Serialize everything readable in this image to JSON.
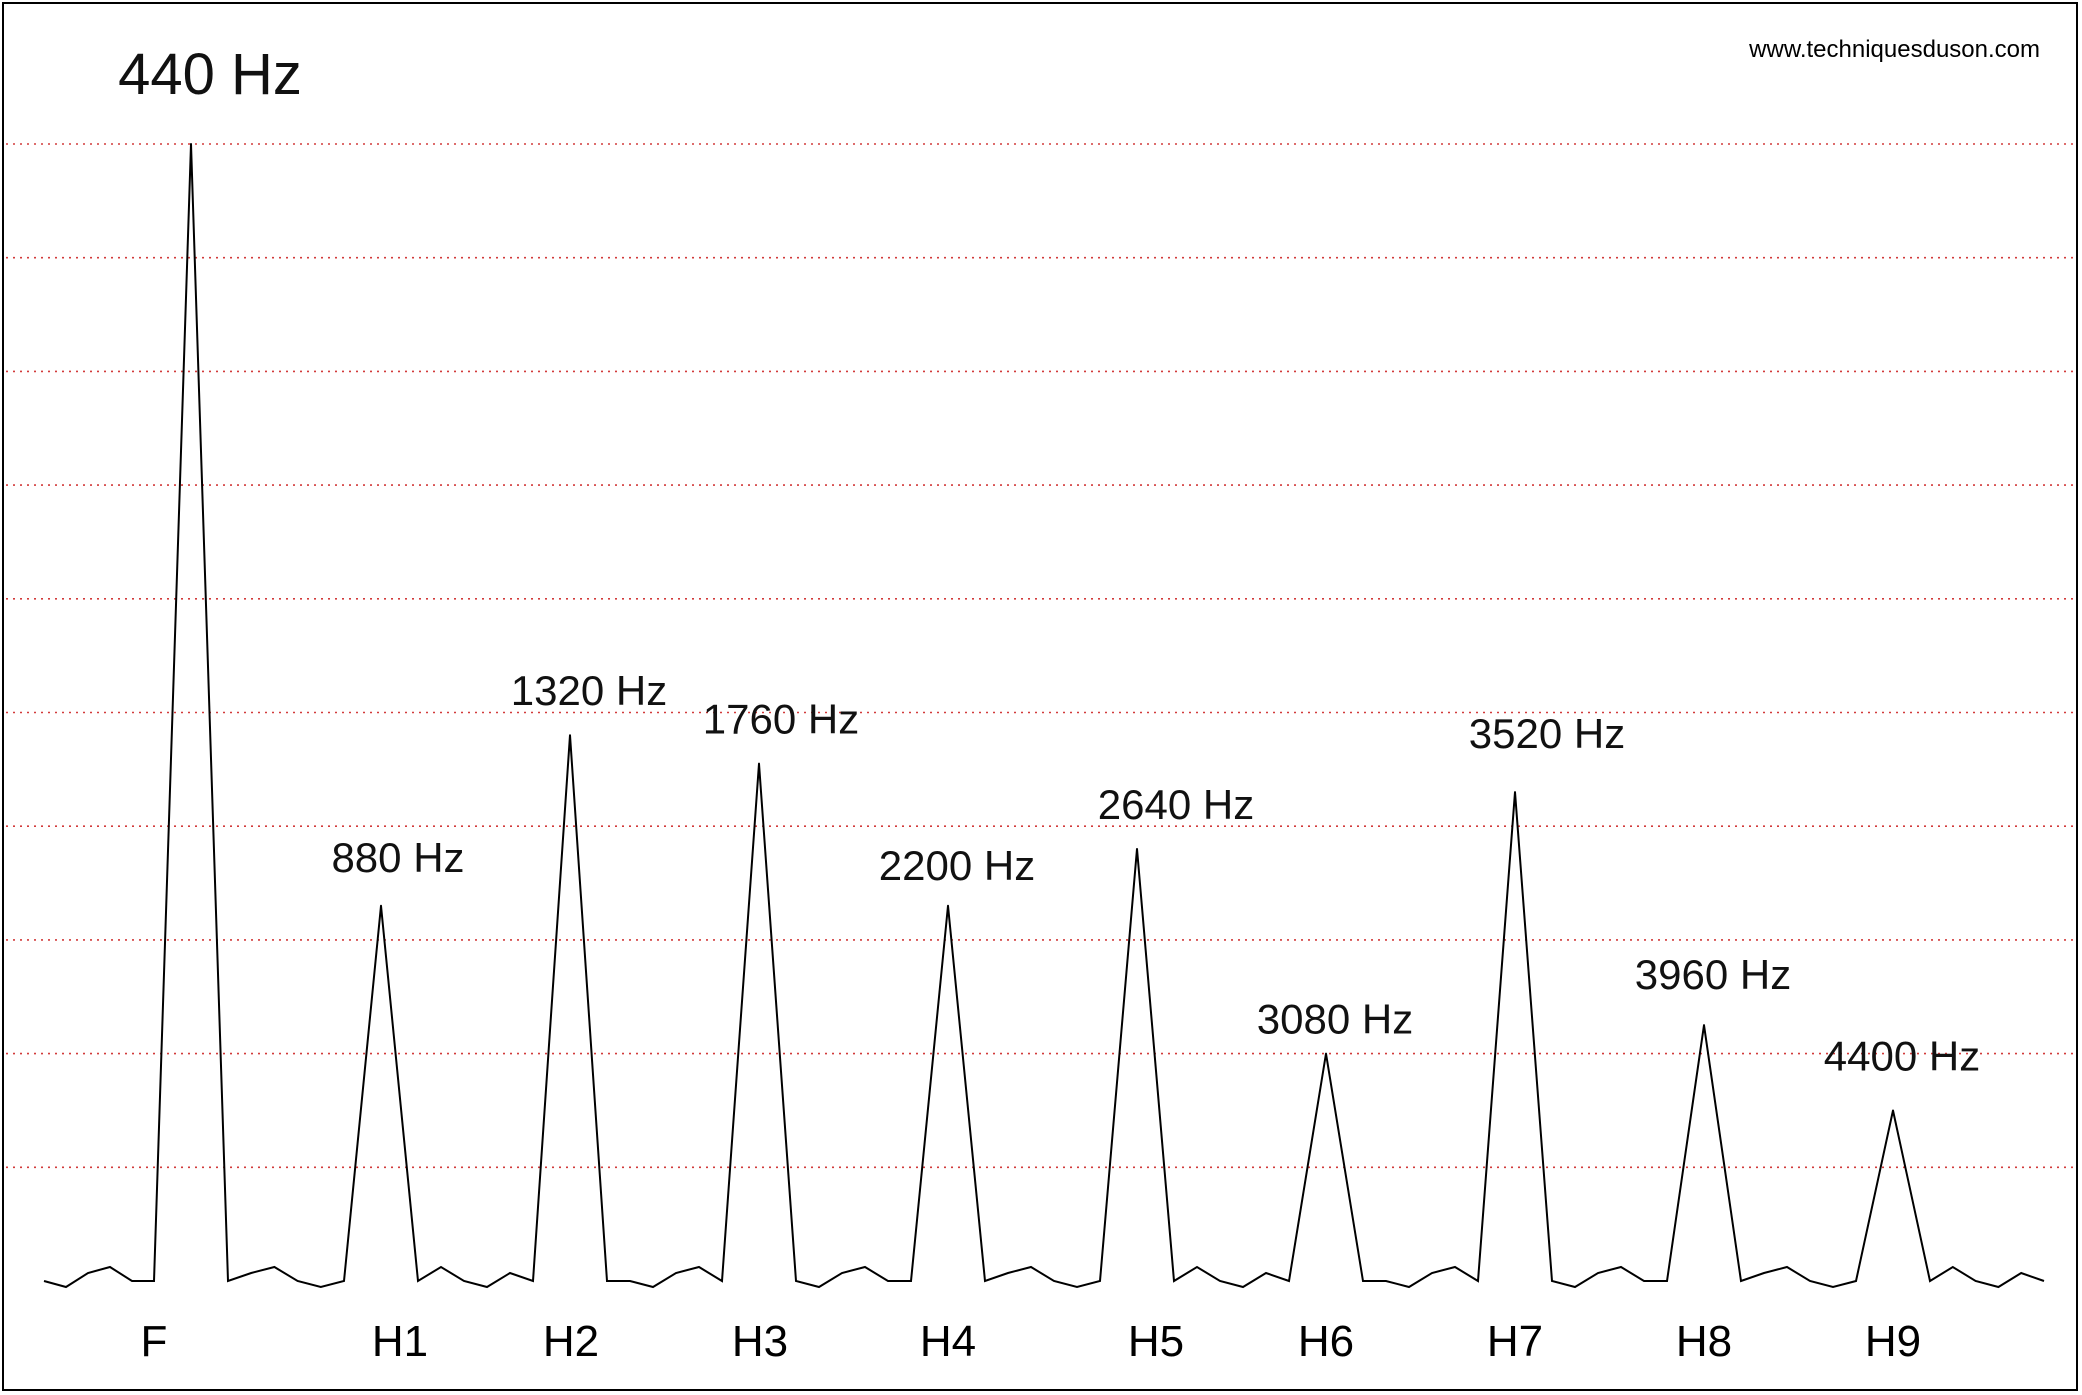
{
  "watermark": "www.techniquesduson.com",
  "chart_data": {
    "type": "line",
    "title": "",
    "xlabel": "",
    "ylabel": "",
    "grid": true,
    "grid_color": "#d23b3b",
    "line_color": "#000000",
    "categories": [
      "F",
      "H1",
      "H2",
      "H3",
      "H4",
      "H5",
      "H6",
      "H7",
      "H8",
      "H9"
    ],
    "frequencies": [
      "440 Hz",
      "880 Hz",
      "1320 Hz",
      "1760 Hz",
      "2200 Hz",
      "2640 Hz",
      "3080 Hz",
      "3520 Hz",
      "3960 Hz",
      "4400 Hz"
    ],
    "values": [
      10,
      3.3,
      4.8,
      4.55,
      3.3,
      3.8,
      2.0,
      4.3,
      2.25,
      1.5
    ],
    "ylim": [
      0,
      10
    ]
  }
}
